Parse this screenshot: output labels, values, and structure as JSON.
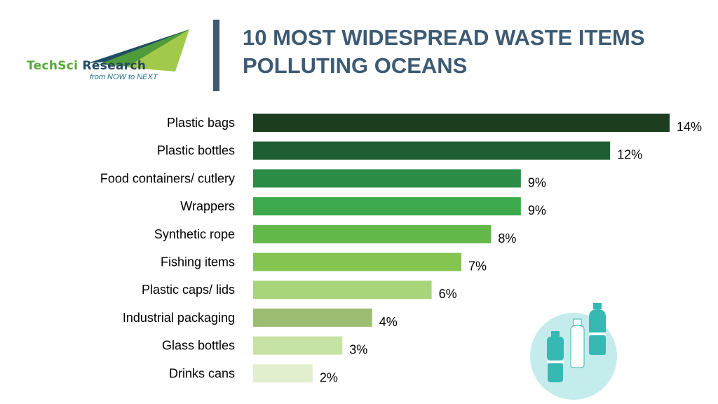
{
  "logo": {
    "word_a": "TechSci",
    "word_b": " Research",
    "tagline": "from NOW to NEXT",
    "colors": {
      "green": "#56a83c",
      "navy": "#244a63",
      "teal": "#1e6f8a"
    }
  },
  "title": "10 MOST WIDESPREAD WASTE ITEMS POLLUTING OCEANS",
  "illustration": {
    "icon": "bottles-icon",
    "circle_color": "#c5ecec",
    "bottle_color": "#35b9b2"
  },
  "chart_data": {
    "type": "bar",
    "orientation": "horizontal",
    "title": "10 MOST WIDESPREAD WASTE ITEMS POLLUTING OCEANS",
    "xlabel": "",
    "ylabel": "",
    "xlim": [
      0,
      14
    ],
    "grid": false,
    "legend": "none",
    "unit": "%",
    "categories": [
      "Plastic bags",
      "Plastic bottles",
      "Food containers/ cutlery",
      "Wrappers",
      "Synthetic rope",
      "Fishing items",
      "Plastic caps/ lids",
      "Industrial packaging",
      "Glass bottles",
      "Drinks cans"
    ],
    "values": [
      14,
      12,
      9,
      9,
      8,
      7,
      6,
      4,
      3,
      2
    ],
    "colors": [
      "#1c3d1f",
      "#1f5e32",
      "#2b8c45",
      "#3caa4c",
      "#62b848",
      "#86c451",
      "#a8d47a",
      "#9cbd72",
      "#c6e2a4",
      "#e2efcf"
    ]
  }
}
